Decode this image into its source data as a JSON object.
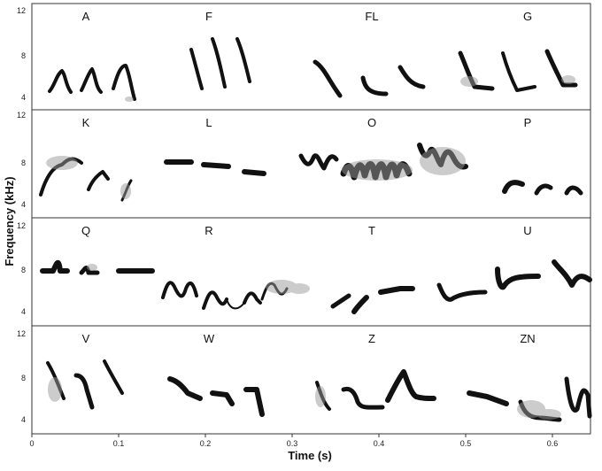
{
  "figure": {
    "y_axis_label": "Frequency (kHz)",
    "x_axis_label": "Time (s)",
    "x_ticks": [
      "0",
      "0.1",
      "0.2",
      "0.3",
      "0.4",
      "0.5",
      "0.6"
    ],
    "panel_y_ticks": [
      "12",
      "8",
      "4"
    ],
    "ink_color": "#111111",
    "smudge_color": "#9a9a9a",
    "frame_color": "#333333"
  },
  "rows": [
    {
      "labels": [
        "A",
        "F",
        "FL",
        "G"
      ]
    },
    {
      "labels": [
        "K",
        "L",
        "O",
        "P"
      ]
    },
    {
      "labels": [
        "Q",
        "R",
        "T",
        "U"
      ]
    },
    {
      "labels": [
        "V",
        "W",
        "Z",
        "ZN"
      ]
    }
  ]
}
